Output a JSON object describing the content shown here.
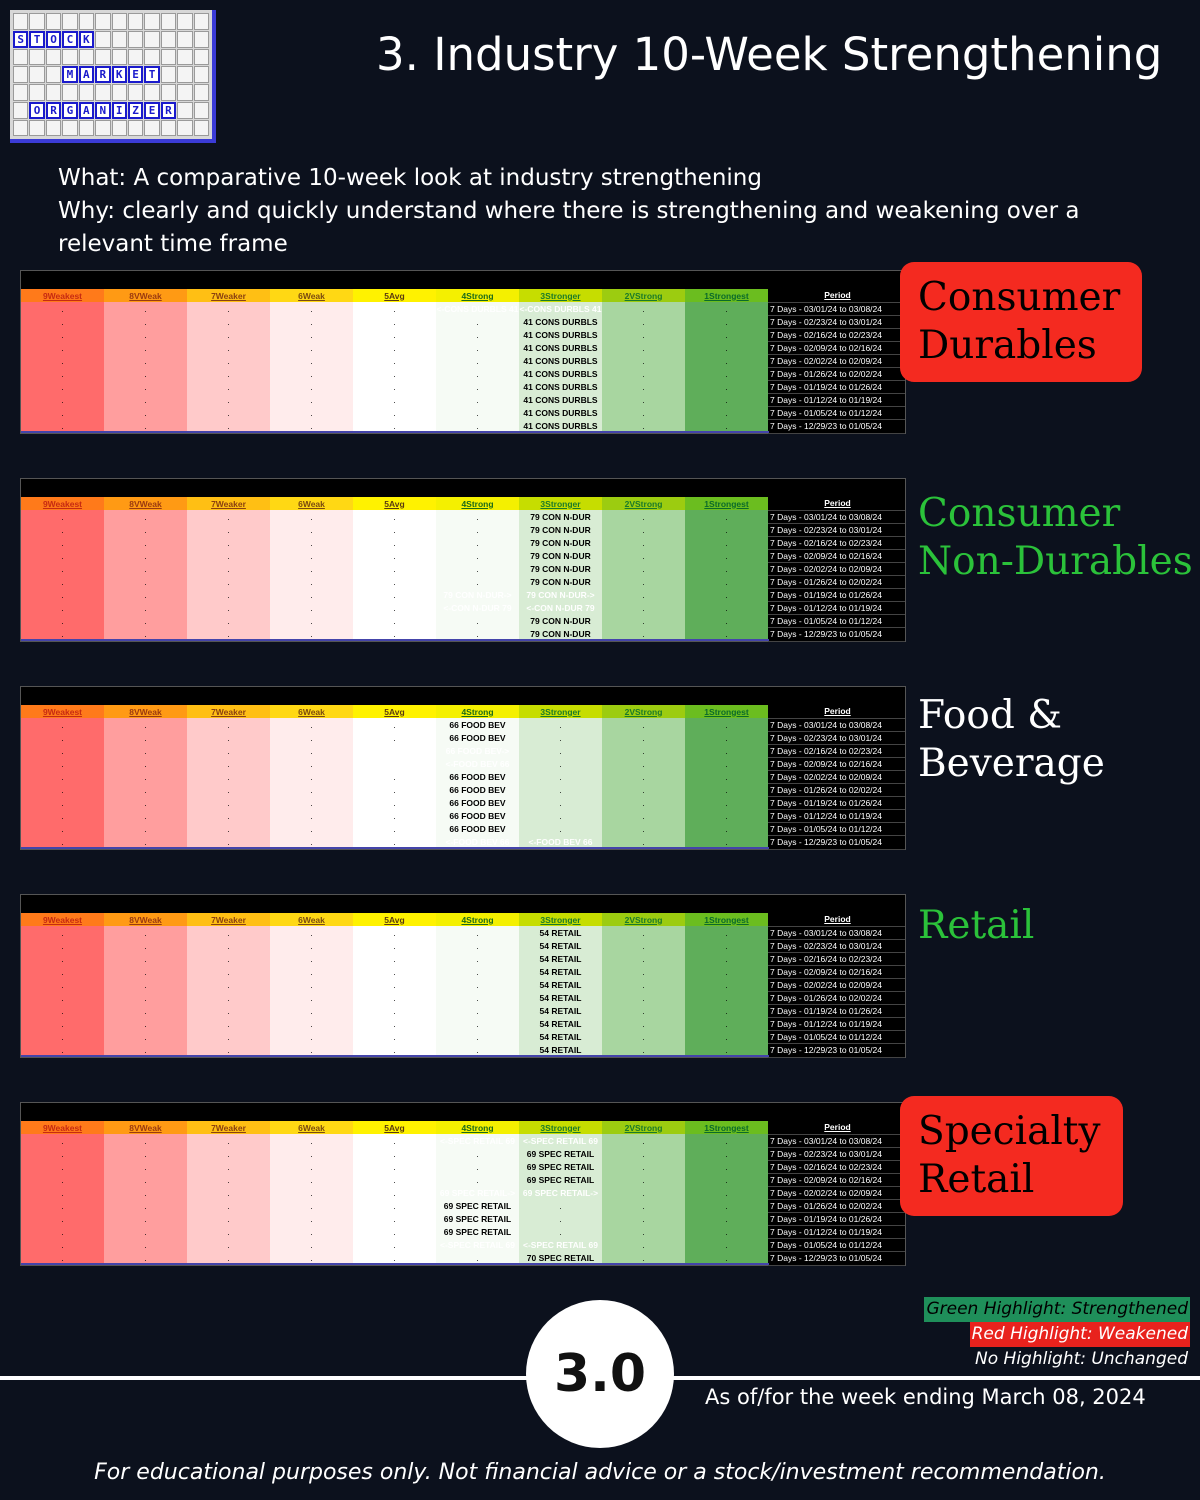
{
  "logo": {
    "rows": [
      [
        "",
        "",
        "",
        "",
        "",
        "",
        "",
        "",
        "",
        "",
        "",
        ""
      ],
      [
        "S",
        "T",
        "O",
        "C",
        "K",
        "",
        "",
        "",
        "",
        "",
        "",
        ""
      ],
      [
        "",
        "",
        "",
        "",
        "",
        "",
        "",
        "",
        "",
        "",
        "",
        ""
      ],
      [
        "",
        "",
        "",
        "M",
        "A",
        "R",
        "K",
        "E",
        "T",
        "",
        "",
        ""
      ],
      [
        "",
        "",
        "",
        "",
        "",
        "",
        "",
        "",
        "",
        "",
        "",
        ""
      ],
      [
        "",
        "O",
        "R",
        "G",
        "A",
        "N",
        "I",
        "Z",
        "E",
        "R",
        "",
        ""
      ],
      [
        "",
        "",
        "",
        "",
        "",
        "",
        "",
        "",
        "",
        "",
        "",
        ""
      ]
    ],
    "highlight": [
      [
        1,
        0
      ],
      [
        1,
        1
      ],
      [
        1,
        2
      ],
      [
        1,
        3
      ],
      [
        1,
        4
      ],
      [
        3,
        3
      ],
      [
        3,
        4
      ],
      [
        3,
        5
      ],
      [
        3,
        6
      ],
      [
        3,
        7
      ],
      [
        3,
        8
      ],
      [
        5,
        1
      ],
      [
        5,
        2
      ],
      [
        5,
        3
      ],
      [
        5,
        4
      ],
      [
        5,
        5
      ],
      [
        5,
        6
      ],
      [
        5,
        7
      ],
      [
        5,
        8
      ],
      [
        5,
        9
      ]
    ]
  },
  "title": "3. Industry 10-Week Strengthening",
  "intro": {
    "what": "What: A comparative 10-week look at industry strengthening",
    "why": "Why: clearly and quickly understand where there is strengthening and weakening over a relevant time frame"
  },
  "chart_data": {
    "type": "table",
    "columns": [
      "9Weakest",
      "8VWeak",
      "7Weaker",
      "6Weak",
      "5Avg",
      "4Strong",
      "3Stronger",
      "2VStrong",
      "1Strongest",
      "Period"
    ],
    "periods": [
      "7 Days - 03/01/24 to 03/08/24",
      "7 Days - 02/23/24 to 03/01/24",
      "7 Days - 02/16/24 to 02/23/24",
      "7 Days - 02/09/24 to 02/16/24",
      "7 Days - 02/02/24 to 02/09/24",
      "7 Days - 01/26/24 to 02/02/24",
      "7 Days - 01/19/24 to 01/26/24",
      "7 Days - 01/12/24 to 01/19/24",
      "7 Days - 01/05/24 to 01/12/24",
      "7 Days - 12/29/23 to 01/05/24"
    ],
    "legend": {
      "green": "Green Highlight: Strengthened",
      "red": "Red Highlight: Weakened",
      "none": "No Highlight: Unchanged"
    },
    "industries": [
      {
        "label_lines": [
          "Consumer",
          "Durables"
        ],
        "label_style": "red-box",
        "rows": [
          {
            "5": {
              "text": "<-CONS DURBLS 41",
              "hl": "red"
            },
            "6": {
              "text": "<-CONS DURBLS 41",
              "hl": "red"
            }
          },
          {
            "6": {
              "text": "41 CONS DURBLS"
            }
          },
          {
            "6": {
              "text": "41 CONS DURBLS"
            }
          },
          {
            "6": {
              "text": "41 CONS DURBLS"
            }
          },
          {
            "6": {
              "text": "41 CONS DURBLS"
            }
          },
          {
            "6": {
              "text": "41 CONS DURBLS"
            }
          },
          {
            "6": {
              "text": "41 CONS DURBLS"
            }
          },
          {
            "6": {
              "text": "41 CONS DURBLS"
            }
          },
          {
            "6": {
              "text": "41 CONS DURBLS"
            }
          },
          {
            "6": {
              "text": "41 CONS DURBLS"
            }
          }
        ]
      },
      {
        "label_lines": [
          "Consumer",
          "Non-Durables"
        ],
        "label_style": "green",
        "rows": [
          {
            "6": {
              "text": "79 CON N-DUR"
            }
          },
          {
            "6": {
              "text": "79 CON N-DUR"
            }
          },
          {
            "6": {
              "text": "79 CON N-DUR"
            }
          },
          {
            "6": {
              "text": "79 CON N-DUR"
            }
          },
          {
            "6": {
              "text": "79 CON N-DUR"
            }
          },
          {
            "6": {
              "text": "79 CON N-DUR"
            }
          },
          {
            "5": {
              "text": "79 CON N-DUR->",
              "hl": "green"
            },
            "6": {
              "text": "79 CON N-DUR->",
              "hl": "green"
            }
          },
          {
            "5": {
              "text": "<-CON N-DUR 79",
              "hl": "red"
            },
            "6": {
              "text": "<-CON N-DUR 79",
              "hl": "red"
            }
          },
          {
            "6": {
              "text": "79 CON N-DUR"
            }
          },
          {
            "6": {
              "text": "79 CON N-DUR"
            }
          }
        ]
      },
      {
        "label_lines": [
          "Food &",
          "Beverage"
        ],
        "label_style": "white",
        "rows": [
          {
            "5": {
              "text": "66 FOOD BEV"
            }
          },
          {
            "5": {
              "text": "66 FOOD BEV"
            }
          },
          {
            "4": {
              "text": "66 FOOD BEV->",
              "hl": "green"
            },
            "5": {
              "text": "66 FOOD BEV->",
              "hl": "green"
            }
          },
          {
            "4": {
              "text": "<-FOOD BEV 66",
              "hl": "red"
            },
            "5": {
              "text": "<-FOOD BEV 66",
              "hl": "red"
            }
          },
          {
            "5": {
              "text": "66 FOOD BEV"
            }
          },
          {
            "5": {
              "text": "66 FOOD BEV"
            }
          },
          {
            "5": {
              "text": "66 FOOD BEV"
            }
          },
          {
            "5": {
              "text": "66 FOOD BEV"
            }
          },
          {
            "5": {
              "text": "66 FOOD BEV"
            }
          },
          {
            "5": {
              "text": "<-FOOD BEV 66",
              "hl": "red"
            },
            "6": {
              "text": "<-FOOD BEV 66",
              "hl": "red"
            }
          }
        ]
      },
      {
        "label_lines": [
          "Retail"
        ],
        "label_style": "green",
        "rows": [
          {
            "6": {
              "text": "54 RETAIL"
            }
          },
          {
            "6": {
              "text": "54 RETAIL"
            }
          },
          {
            "6": {
              "text": "54 RETAIL"
            }
          },
          {
            "6": {
              "text": "54 RETAIL"
            }
          },
          {
            "6": {
              "text": "54 RETAIL"
            }
          },
          {
            "6": {
              "text": "54 RETAIL"
            }
          },
          {
            "6": {
              "text": "54 RETAIL"
            }
          },
          {
            "6": {
              "text": "54 RETAIL"
            }
          },
          {
            "6": {
              "text": "54 RETAIL"
            }
          },
          {
            "6": {
              "text": "54 RETAIL"
            }
          }
        ]
      },
      {
        "label_lines": [
          "Specialty",
          "Retail"
        ],
        "label_style": "red-box",
        "rows": [
          {
            "5": {
              "text": "<-SPEC RETAIL 69",
              "hl": "red"
            },
            "6": {
              "text": "<-SPEC RETAIL 69",
              "hl": "red"
            }
          },
          {
            "6": {
              "text": "69 SPEC RETAIL"
            }
          },
          {
            "6": {
              "text": "69 SPEC RETAIL"
            }
          },
          {
            "6": {
              "text": "69 SPEC RETAIL"
            }
          },
          {
            "5": {
              "text": "69 SPEC RETAIL->",
              "hl": "green"
            },
            "6": {
              "text": "69 SPEC RETAIL->",
              "hl": "green"
            }
          },
          {
            "5": {
              "text": "69 SPEC RETAIL"
            }
          },
          {
            "5": {
              "text": "69 SPEC RETAIL"
            }
          },
          {
            "5": {
              "text": "69 SPEC RETAIL"
            }
          },
          {
            "5": {
              "text": "<-SPEC RETAIL 69",
              "hl": "red"
            },
            "6": {
              "text": "<-SPEC RETAIL 69",
              "hl": "red"
            }
          },
          {
            "6": {
              "text": "70 SPEC RETAIL"
            }
          }
        ]
      }
    ]
  },
  "badge": "3.0",
  "asof": "As of/for the week ending March 08, 2024",
  "disclaimer": "For educational purposes only. Not financial advice or a stock/investment recommendation.",
  "colors": {
    "header": [
      "#ff7a1a",
      "#ff9a14",
      "#ffbf14",
      "#ffd814",
      "#fff200",
      "#f4f000",
      "#c6dd00",
      "#9ccc10",
      "#6bbd1f"
    ],
    "header_text": [
      "#c62a12",
      "#9a3a10",
      "#8a4010",
      "#7a4a10",
      "#5a3a10",
      "#1a6a1a",
      "#1a7a2a",
      "#1a7a2a",
      "#0a6a2a"
    ],
    "body": [
      "#ff6b6b",
      "#ff9e9e",
      "#ffcaca",
      "#ffecec",
      "#ffffff",
      "#f6fbf5",
      "#d8ecd4",
      "#a8d6a0",
      "#5fae5a"
    ]
  }
}
